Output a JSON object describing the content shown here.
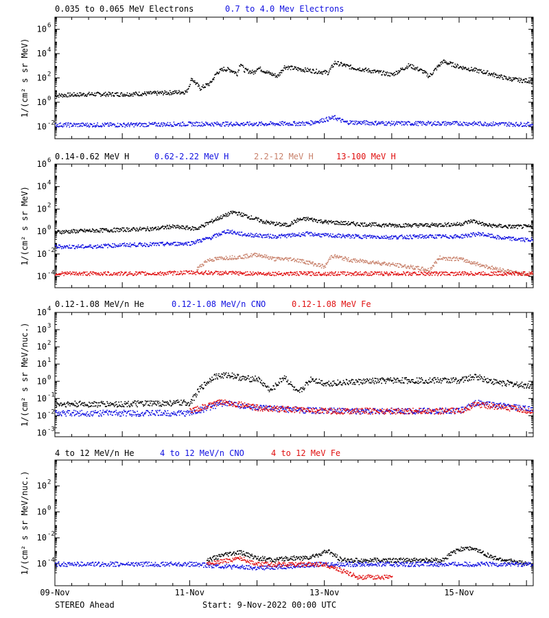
{
  "footer": {
    "left": "STEREO Ahead",
    "start": "Start:  9-Nov-2022 00:00 UTC"
  },
  "colors": {
    "black": "#000000",
    "blue": "#1010e0",
    "tan": "#c8806a",
    "red": "#e01010"
  },
  "chart_data": [
    {
      "type": "scatter",
      "yscale": "log",
      "ylabel": "1/(cm² s sr MeV)",
      "ylim": [
        0.001,
        10000000
      ],
      "yticks": [
        {
          "v": 0.01,
          "b": "10",
          "e": "-2"
        },
        {
          "v": 1,
          "b": "10",
          "e": "0"
        },
        {
          "v": 100,
          "b": "10",
          "e": "2"
        },
        {
          "v": 10000,
          "b": "10",
          "e": "4"
        },
        {
          "v": 1000000,
          "b": "10",
          "e": "6"
        }
      ],
      "series": [
        {
          "name": "0.035 to 0.065 MeV Electrons",
          "color": "#000000",
          "points": [
            [
              0,
              4
            ],
            [
              1,
              5
            ],
            [
              2,
              5
            ],
            [
              3,
              6
            ],
            [
              3.5,
              7
            ],
            [
              3.9,
              8
            ],
            [
              4.05,
              100
            ],
            [
              4.3,
              15
            ],
            [
              4.6,
              40
            ],
            [
              4.8,
              300
            ],
            [
              5.0,
              600
            ],
            [
              5.2,
              500
            ],
            [
              5.4,
              250
            ],
            [
              5.5,
              2000
            ],
            [
              5.6,
              500
            ],
            [
              5.9,
              300
            ],
            [
              6.0,
              800
            ],
            [
              6.3,
              300
            ],
            [
              6.6,
              150
            ],
            [
              6.8,
              900
            ],
            [
              7.2,
              600
            ],
            [
              7.7,
              400
            ],
            [
              8.1,
              300
            ],
            [
              8.3,
              2000
            ],
            [
              8.8,
              800
            ],
            [
              9.4,
              400
            ],
            [
              10.0,
              200
            ],
            [
              10.5,
              1200
            ],
            [
              10.9,
              400
            ],
            [
              11.1,
              150
            ],
            [
              11.5,
              2500
            ],
            [
              12.0,
              900
            ],
            [
              12.8,
              300
            ],
            [
              13.4,
              100
            ],
            [
              13.8,
              70
            ],
            [
              14.2,
              60
            ],
            [
              15.0,
              45
            ]
          ]
        },
        {
          "name": "0.7 to 4.0 Mev Electrons",
          "color": "#1010e0",
          "points": [
            [
              0,
              0.015
            ],
            [
              2,
              0.015
            ],
            [
              4,
              0.018
            ],
            [
              6,
              0.018
            ],
            [
              7.5,
              0.02
            ],
            [
              8.3,
              0.06
            ],
            [
              8.6,
              0.025
            ],
            [
              10,
              0.02
            ],
            [
              12,
              0.02
            ],
            [
              15,
              0.015
            ]
          ]
        }
      ],
      "ymax_data": 10000000
    },
    {
      "type": "scatter",
      "yscale": "log",
      "ylabel": "1/(cm² s sr MeV)",
      "ylim": [
        1e-05,
        1000000
      ],
      "yticks": [
        {
          "v": 0.0001,
          "b": "10",
          "e": "-4"
        },
        {
          "v": 0.01,
          "b": "10",
          "e": "-2"
        },
        {
          "v": 1,
          "b": "10",
          "e": "0"
        },
        {
          "v": 100,
          "b": "10",
          "e": "2"
        },
        {
          "v": 10000,
          "b": "10",
          "e": "4"
        },
        {
          "v": 1000000,
          "b": "10",
          "e": "6"
        }
      ],
      "series": [
        {
          "name": "0.14-0.62 MeV H",
          "color": "#000000",
          "points": [
            [
              0,
              1
            ],
            [
              1,
              1.3
            ],
            [
              2,
              1.6
            ],
            [
              3,
              2
            ],
            [
              3.4,
              3
            ],
            [
              4.2,
              2
            ],
            [
              4.8,
              15
            ],
            [
              5.3,
              60
            ],
            [
              5.8,
              20
            ],
            [
              6.2,
              8
            ],
            [
              6.6,
              5
            ],
            [
              6.9,
              4
            ],
            [
              7.2,
              12
            ],
            [
              7.5,
              15
            ],
            [
              8,
              8
            ],
            [
              9,
              5
            ],
            [
              10,
              4
            ],
            [
              11,
              4
            ],
            [
              12,
              5
            ],
            [
              12.4,
              10
            ],
            [
              12.8,
              4
            ],
            [
              13.5,
              3
            ],
            [
              14.5,
              3
            ],
            [
              15,
              3
            ]
          ]
        },
        {
          "name": "0.62-2.22 MeV H",
          "color": "#1010e0",
          "points": [
            [
              0,
              0.05
            ],
            [
              1,
              0.05
            ],
            [
              2,
              0.07
            ],
            [
              3,
              0.08
            ],
            [
              4,
              0.1
            ],
            [
              4.6,
              0.3
            ],
            [
              5.1,
              1.2
            ],
            [
              5.6,
              0.6
            ],
            [
              6,
              0.5
            ],
            [
              6.5,
              0.4
            ],
            [
              7,
              0.5
            ],
            [
              7.5,
              0.7
            ],
            [
              8,
              0.5
            ],
            [
              9,
              0.4
            ],
            [
              10,
              0.35
            ],
            [
              11,
              0.4
            ],
            [
              12,
              0.4
            ],
            [
              12.6,
              0.7
            ],
            [
              13.2,
              0.3
            ],
            [
              14,
              0.2
            ],
            [
              15,
              0.2
            ]
          ]
        },
        {
          "name": "2.2-12 MeV H",
          "color": "#c8806a",
          "points": [
            [
              4.2,
              0.0005
            ],
            [
              4.5,
              0.003
            ],
            [
              5,
              0.005
            ],
            [
              5.5,
              0.006
            ],
            [
              6,
              0.01
            ],
            [
              6.5,
              0.004
            ],
            [
              7,
              0.004
            ],
            [
              7.5,
              0.002
            ],
            [
              8,
              0.0008
            ],
            [
              8.2,
              0.008
            ],
            [
              8.8,
              0.003
            ],
            [
              9.5,
              0.002
            ],
            [
              10.5,
              0.0008
            ],
            [
              11.1,
              0.0004
            ],
            [
              11.4,
              0.005
            ],
            [
              12,
              0.004
            ],
            [
              12.5,
              0.0015
            ],
            [
              13,
              0.0006
            ],
            [
              13.8,
              0.0002
            ],
            [
              14.5,
              0.0002
            ],
            [
              15,
              0.0002
            ]
          ]
        },
        {
          "name": "13-100 MeV H",
          "color": "#e01010",
          "points": [
            [
              0,
              0.0002
            ],
            [
              3,
              0.0002
            ],
            [
              4,
              0.00025
            ],
            [
              6,
              0.0002
            ],
            [
              8,
              0.0002
            ],
            [
              10,
              0.0002
            ],
            [
              12,
              0.0002
            ],
            [
              15,
              0.0002
            ]
          ]
        }
      ]
    },
    {
      "type": "scatter",
      "yscale": "log",
      "ylabel": "1/(cm² s sr MeV/nuc.)",
      "ylim": [
        0.0006,
        10000
      ],
      "yticks": [
        {
          "v": 0.001,
          "b": "10",
          "e": "-3"
        },
        {
          "v": 0.01,
          "b": "10",
          "e": "-2"
        },
        {
          "v": 0.1,
          "b": "10",
          "e": "-1"
        },
        {
          "v": 1,
          "b": "10",
          "e": "0"
        },
        {
          "v": 10,
          "b": "10",
          "e": "1"
        },
        {
          "v": 100,
          "b": "10",
          "e": "2"
        },
        {
          "v": 1000,
          "b": "10",
          "e": "3"
        },
        {
          "v": 10000,
          "b": "10",
          "e": "4"
        }
      ],
      "series": [
        {
          "name": "0.12-1.08 MeV/n He",
          "color": "#000000",
          "points": [
            [
              0,
              0.05
            ],
            [
              2,
              0.05
            ],
            [
              4,
              0.06
            ],
            [
              4.3,
              0.4
            ],
            [
              4.7,
              2
            ],
            [
              5.2,
              2.5
            ],
            [
              5.6,
              1.5
            ],
            [
              6,
              1.5
            ],
            [
              6.4,
              0.3
            ],
            [
              6.8,
              2
            ],
            [
              7.2,
              0.2
            ],
            [
              7.6,
              1.5
            ],
            [
              8,
              0.8
            ],
            [
              9,
              1
            ],
            [
              10,
              1.2
            ],
            [
              11,
              1.2
            ],
            [
              12,
              1.2
            ],
            [
              12.5,
              2
            ],
            [
              13,
              1
            ],
            [
              14,
              0.6
            ],
            [
              15,
              0.6
            ]
          ]
        },
        {
          "name": "0.12-1.08 MeV/n CNO",
          "color": "#1010e0",
          "points": [
            [
              0,
              0.015
            ],
            [
              2,
              0.015
            ],
            [
              4,
              0.015
            ],
            [
              5,
              0.06
            ],
            [
              6,
              0.03
            ],
            [
              8,
              0.02
            ],
            [
              10,
              0.02
            ],
            [
              12,
              0.02
            ],
            [
              12.5,
              0.06
            ],
            [
              15,
              0.015
            ]
          ]
        },
        {
          "name": "0.12-1.08 MeV Fe",
          "color": "#e01010",
          "points": [
            [
              4,
              0.02
            ],
            [
              5,
              0.07
            ],
            [
              6,
              0.03
            ],
            [
              8,
              0.02
            ],
            [
              10,
              0.02
            ],
            [
              12,
              0.02
            ],
            [
              12.5,
              0.05
            ],
            [
              15,
              0.012
            ]
          ]
        }
      ]
    },
    {
      "type": "scatter",
      "yscale": "log",
      "ylabel": "1/(cm² s sr MeV/nuc.)",
      "ylim": [
        2e-06,
        10000
      ],
      "yticks": [
        {
          "v": 0.0001,
          "b": "10",
          "e": "-4"
        },
        {
          "v": 0.01,
          "b": "10",
          "e": "-2"
        },
        {
          "v": 1,
          "b": "10",
          "e": "0"
        },
        {
          "v": 100,
          "b": "10",
          "e": "2"
        }
      ],
      "series": [
        {
          "name": "4 to 12 MeV/n He",
          "color": "#000000",
          "points": [
            [
              4.5,
              0.0002
            ],
            [
              5,
              0.0005
            ],
            [
              5.5,
              0.0008
            ],
            [
              6,
              0.0003
            ],
            [
              6.5,
              0.0002
            ],
            [
              7,
              0.0003
            ],
            [
              7.5,
              0.0003
            ],
            [
              8.1,
              0.001
            ],
            [
              8.5,
              0.0002
            ],
            [
              10,
              0.0002
            ],
            [
              11.5,
              0.0002
            ],
            [
              11.8,
              0.0008
            ],
            [
              12.2,
              0.002
            ],
            [
              12.6,
              0.001
            ],
            [
              13,
              0.0003
            ],
            [
              14,
              0.0001
            ]
          ]
        },
        {
          "name": "4 to 12 MeV/n CNO",
          "color": "#1010e0",
          "points": [
            [
              0,
              0.0001
            ],
            [
              4,
              0.0001
            ],
            [
              5,
              7e-05
            ],
            [
              6,
              5e-05
            ],
            [
              8,
              0.0001
            ],
            [
              10,
              0.0001
            ],
            [
              12,
              0.0001
            ],
            [
              15,
              0.0001
            ]
          ]
        },
        {
          "name": "4 to 12 MeV Fe",
          "color": "#e01010",
          "points": [
            [
              4.5,
              0.0001
            ],
            [
              5.5,
              0.0003
            ],
            [
              6,
              0.0001
            ],
            [
              7,
              0.0001
            ],
            [
              8,
              0.0001
            ],
            [
              9,
              1e-05
            ],
            [
              10,
              1e-05
            ]
          ]
        }
      ]
    }
  ],
  "xaxis": {
    "range_days": [
      0,
      15.7
    ],
    "ticks": [
      {
        "v": 0,
        "label": "09-Nov"
      },
      {
        "v": 2,
        "label": "11-Nov"
      },
      {
        "v": 4,
        "label": "13-Nov"
      },
      {
        "v": 6,
        "label": "15-Nov"
      }
    ]
  }
}
